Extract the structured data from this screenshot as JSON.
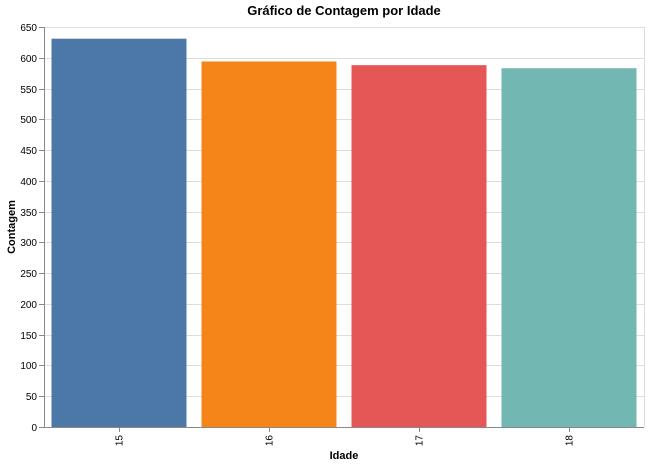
{
  "chart_data": {
    "type": "bar",
    "title": "Gráfico de Contagem por Idade",
    "xlabel": "Idade",
    "ylabel": "Contagem",
    "categories": [
      "15",
      "16",
      "17",
      "18"
    ],
    "values": [
      631,
      594,
      588,
      583
    ],
    "colors": [
      "#4c78a8",
      "#f58518",
      "#e45756",
      "#72b7b2"
    ],
    "ylim": [
      0,
      650
    ],
    "yticks": [
      0,
      50,
      100,
      150,
      200,
      250,
      300,
      350,
      400,
      450,
      500,
      550,
      600,
      650
    ],
    "grid": true,
    "legend": "none"
  }
}
